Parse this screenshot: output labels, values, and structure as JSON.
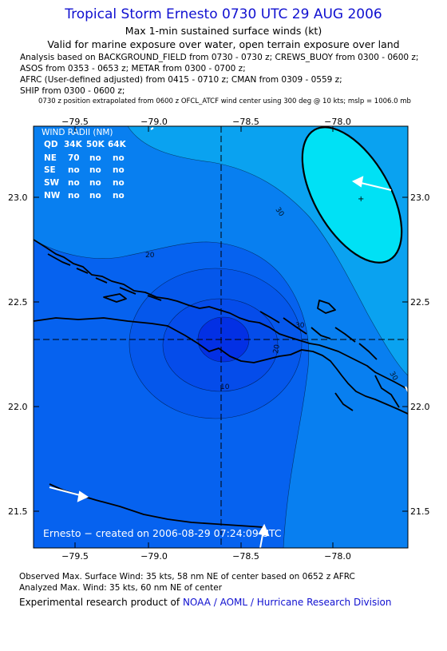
{
  "header": {
    "title": "Tropical Storm Ernesto 0730 UTC 29 AUG 2006",
    "subtitle": "Max 1-min sustained surface winds (kt)",
    "valid": "Valid for marine exposure over water, open terrain exposure over land",
    "analysis_lines": [
      "Analysis based on  BACKGROUND_FIELD from 0730 - 0730 z;  CREWS_BUOY from 0300 - 0600 z;",
      "ASOS from 0353 - 0653 z;  METAR from 0300 - 0700 z;",
      "AFRC (User-defined adjusted) from 0415 - 0710 z;  CMAN from 0309 - 0559 z;",
      "SHIP from 0300 - 0600 z;"
    ],
    "position_note": "0730 z position extrapolated from 0600 z OFCL_ATCF wind center using 300 deg @ 10 kts; mslp = 1006.0 mb"
  },
  "map": {
    "lon_ticks": [
      "−79.5",
      "−79.0",
      "−78.5",
      "−78.0"
    ],
    "lat_ticks": [
      "23.0",
      "22.5",
      "22.0",
      "21.5"
    ],
    "contour_labels": [
      "30",
      "20",
      "10",
      "20",
      "30",
      "30",
      "20",
      "30"
    ],
    "center": {
      "lon": -78.63,
      "lat": 22.33
    },
    "colors": {
      "lightest": "#00e1f5",
      "light": "#0aa2f0",
      "mid": "#087ff0",
      "dark": "#0662ef",
      "darker": "#054cea",
      "darkest": "#0330e4",
      "coast": "#000000",
      "wind_arrow": "#ffffff"
    },
    "wind_radii": {
      "title": "WIND RADII (NM)",
      "columns": [
        "QD",
        "34K",
        "50K",
        "64K"
      ],
      "rows": [
        [
          "NE",
          "70",
          "no",
          "no"
        ],
        [
          "SE",
          "no",
          "no",
          "no"
        ],
        [
          "SW",
          "no",
          "no",
          "no"
        ],
        [
          "NW",
          "no",
          "no",
          "no"
        ]
      ]
    },
    "created_text": "Ernesto − created on 2006-08-29 07:24:09 UTC"
  },
  "footer": {
    "observed": "Observed Max. Surface Wind: 35 kts, 58 nm NE of center based on 0652 z AFRC",
    "analyzed": "Analyzed Max. Wind: 35 kts, 60 nm NE of center",
    "credit_prefix": "Experimental research product of",
    "credit_org": "NOAA / AOML / Hurricane Research Division"
  }
}
